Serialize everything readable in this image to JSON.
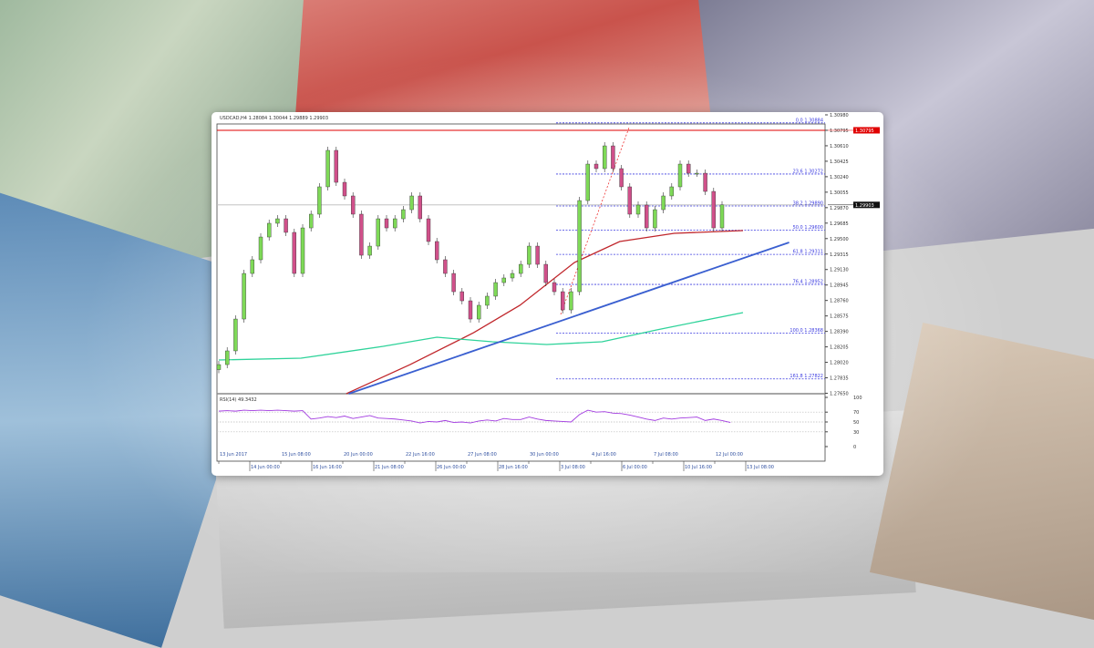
{
  "chart_data": {
    "type": "candlestick",
    "title": "USDCAD,H4  1.28084 1.30044 1.29889 1.29903",
    "symbol": "USDCAD,H4",
    "ohlc_header": "1.28084 1.30044 1.29889 1.29903",
    "current_price": "1.29903",
    "marked_price": "1.30795",
    "closes": [
      1.27993,
      1.28157,
      1.28538,
      1.29083,
      1.29247,
      1.29519,
      1.29683,
      1.29737,
      1.29574,
      1.29083,
      1.29628,
      1.29792,
      1.30119,
      1.30555,
      1.30173,
      1.3001,
      1.29792,
      1.29301,
      1.2941,
      1.29737,
      1.29628,
      1.29737,
      1.29846,
      1.3001,
      1.29737,
      1.29465,
      1.29247,
      1.29083,
      1.28865,
      1.28756,
      1.28538,
      1.28702,
      1.28811,
      1.28974,
      1.29029,
      1.29083,
      1.29192,
      1.2941,
      1.29192,
      1.28974,
      1.28865,
      1.28647,
      1.28865,
      1.29955,
      1.30391,
      1.30337,
      1.30609,
      1.30337,
      1.30119,
      1.29792,
      1.29901,
      1.29628,
      1.29846,
      1.3001,
      1.30119,
      1.30391,
      1.30282,
      1.30282,
      1.30064,
      1.29628,
      1.29903
    ],
    "y_ticks": [
      "1.30980",
      "1.30795",
      "1.30610",
      "1.30425",
      "1.30240",
      "1.30055",
      "1.29870",
      "1.29685",
      "1.29500",
      "1.29315",
      "1.29130",
      "1.28945",
      "1.28760",
      "1.28575",
      "1.28390",
      "1.28205",
      "1.28020",
      "1.27835",
      "1.27650"
    ],
    "x_ticks": [
      "13 Jun 2017",
      "14 Jun 00:00",
      "15 Jun 08:00",
      "16 Jun 16:00",
      "20 Jun 00:00",
      "21 Jun 08:00",
      "22 Jun 16:00",
      "26 Jun 00:00",
      "27 Jun 08:00",
      "28 Jun 16:00",
      "30 Jun 00:00",
      "3 Jul 08:00",
      "4 Jul 16:00",
      "6 Jul 00:00",
      "7 Jul 08:00",
      "10 Jul 16:00",
      "12 Jul 00:00",
      "13 Jul 08:00"
    ],
    "moving_averages": [
      {
        "color": "#c0262b",
        "points": [
          [
            15.2,
            1.27645
          ],
          [
            22.8,
            1.27993
          ],
          [
            30.4,
            1.28375
          ],
          [
            35.9,
            1.28702
          ],
          [
            42.4,
            1.29214
          ],
          [
            47.8,
            1.29465
          ],
          [
            54.3,
            1.29563
          ],
          [
            62.5,
            1.29596
          ]
        ]
      },
      {
        "color": "#2fd39a",
        "points": [
          [
            0,
            1.28048
          ],
          [
            9.8,
            1.2807
          ],
          [
            19.6,
            1.28211
          ],
          [
            26,
            1.2832
          ],
          [
            32.6,
            1.28266
          ],
          [
            39.1,
            1.28233
          ],
          [
            45.7,
            1.28266
          ],
          [
            52.2,
            1.28408
          ],
          [
            62.5,
            1.28615
          ]
        ]
      }
    ],
    "trendline": {
      "color": "#3a5fd0",
      "points": [
        [
          15.5,
          1.27645
        ],
        [
          68,
          1.29454
        ]
      ]
    },
    "fibonacci": [
      {
        "label": "0.0 1.30884",
        "price": 1.30884
      },
      {
        "label": "23.6 1.30272",
        "price": 1.30272
      },
      {
        "label": "38.2 1.29890",
        "price": 1.2989
      },
      {
        "label": "50.0 1.29600",
        "price": 1.296
      },
      {
        "label": "61.8 1.29311",
        "price": 1.29311
      },
      {
        "label": "76.4 1.28952",
        "price": 1.28952
      },
      {
        "label": "100.0 1.28368",
        "price": 1.28368
      },
      {
        "label": "161.8 1.27822",
        "price": 1.27822
      }
    ],
    "rsi": {
      "label": "RSI(14) 49.3432",
      "levels": [
        70,
        50,
        30
      ],
      "ticks": [
        "100",
        "70",
        "50",
        "30",
        "0"
      ],
      "values": [
        72,
        73,
        72,
        74,
        73,
        74,
        73,
        74,
        73,
        72,
        73,
        56,
        58,
        61,
        59,
        62,
        57,
        60,
        63,
        58,
        57,
        56,
        54,
        52,
        48,
        51,
        50,
        53,
        49,
        50,
        48,
        52,
        54,
        52,
        57,
        55,
        55,
        60,
        56,
        53,
        52,
        51,
        50,
        65,
        74,
        70,
        71,
        68,
        67,
        64,
        60,
        56,
        53,
        58,
        56,
        58,
        59,
        60,
        53,
        56,
        53,
        49
      ]
    },
    "colors": {
      "bull": "#7ed957",
      "bear": "#d0508a",
      "fib": "#3b3be0",
      "high_line": "#e00000"
    }
  }
}
